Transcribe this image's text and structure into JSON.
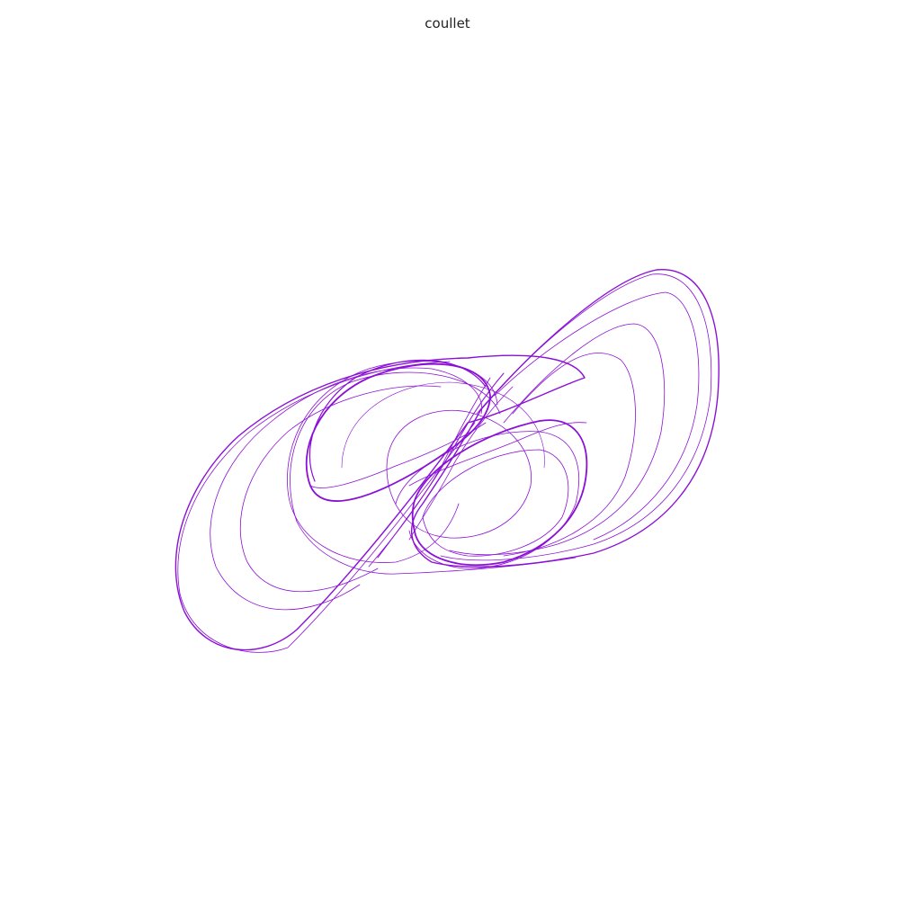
{
  "title": "coullet",
  "figure": {
    "kind": "chaotic attractor trajectory",
    "line_color": "#8b10d6",
    "background": "#ffffff",
    "axes_visible": false
  }
}
